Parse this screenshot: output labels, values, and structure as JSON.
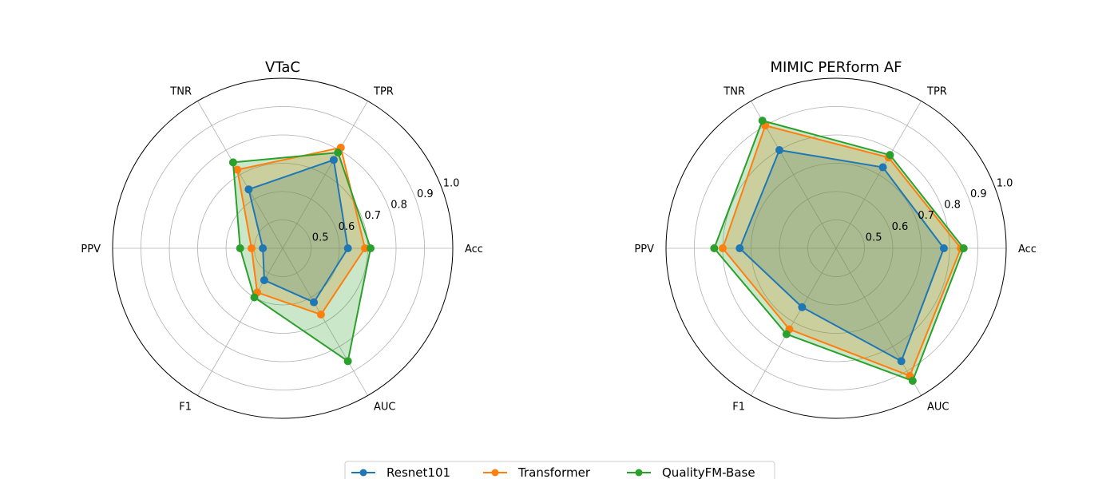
{
  "chart_data": [
    {
      "type": "radar",
      "title": "VTaC",
      "categories": [
        "Acc",
        "TPR",
        "TNR",
        "PPV",
        "F1",
        "AUC"
      ],
      "rlim": [
        0.4,
        1.0
      ],
      "rticks": [
        "0.5",
        "0.6",
        "0.7",
        "0.8",
        "0.9",
        "1.0"
      ],
      "rtick_values": [
        0.5,
        0.6,
        0.7,
        0.8,
        0.9,
        1.0
      ],
      "grid": true,
      "series": [
        {
          "name": "Resnet101",
          "values": [
            0.63,
            0.76,
            0.64,
            0.47,
            0.53,
            0.62
          ]
        },
        {
          "name": "Transformer",
          "values": [
            0.69,
            0.81,
            0.72,
            0.51,
            0.58,
            0.67
          ]
        },
        {
          "name": "QualityFM-Base",
          "values": [
            0.71,
            0.79,
            0.75,
            0.55,
            0.6,
            0.86
          ]
        }
      ]
    },
    {
      "type": "radar",
      "title": "MIMIC PERform AF",
      "categories": [
        "Acc",
        "TPR",
        "TNR",
        "PPV",
        "F1",
        "AUC"
      ],
      "rlim": [
        0.4,
        1.0
      ],
      "rticks": [
        "0.5",
        "0.6",
        "0.7",
        "0.8",
        "0.9",
        "1.0"
      ],
      "rtick_values": [
        0.5,
        0.6,
        0.7,
        0.8,
        0.9,
        1.0
      ],
      "grid": true,
      "series": [
        {
          "name": "Resnet101",
          "values": [
            0.78,
            0.73,
            0.8,
            0.74,
            0.64,
            0.86
          ]
        },
        {
          "name": "Transformer",
          "values": [
            0.84,
            0.77,
            0.9,
            0.8,
            0.73,
            0.92
          ]
        },
        {
          "name": "QualityFM-Base",
          "values": [
            0.85,
            0.78,
            0.92,
            0.83,
            0.75,
            0.94
          ]
        }
      ]
    }
  ],
  "legend": {
    "placement": "bottom-center",
    "entries": [
      "Resnet101",
      "Transformer",
      "QualityFM-Base"
    ]
  },
  "colors": {
    "Resnet101": "#1f77b4",
    "Transformer": "#ff7f0e",
    "QualityFM-Base": "#2ca02c",
    "grid": "#b0b0b0",
    "frame": "#000000"
  }
}
